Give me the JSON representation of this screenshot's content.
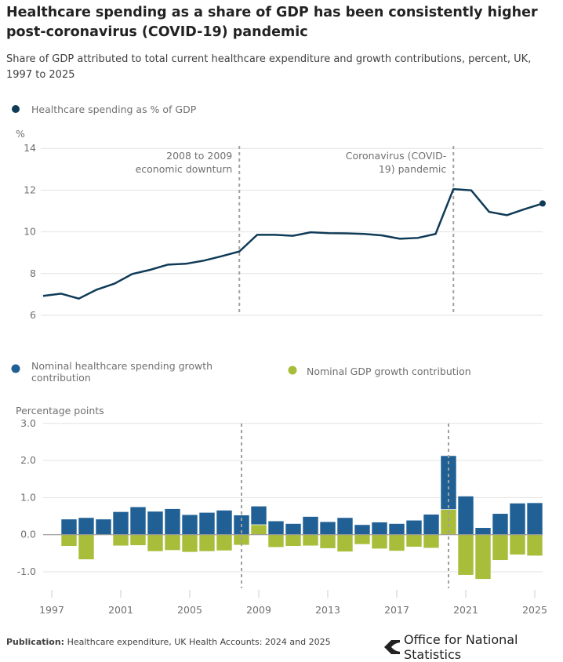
{
  "title": "Healthcare spending as a share of GDP has been consistently higher post-coronavirus (COVID-19) pandemic",
  "subtitle": "Share of GDP attributed to total current healthcare expenditure and growth contributions, percent, UK, 1997 to 2025",
  "footer": {
    "label": "Publication:",
    "text": "Healthcare expenditure, UK Health Accounts: 2024 and 2025",
    "logo_text": "Office for National Statistics"
  },
  "chart_data": [
    {
      "type": "line",
      "legend": "Healthcare spending as % of GDP",
      "ylabel": "%",
      "ylim": [
        6,
        14
      ],
      "yticks": [
        "6",
        "8",
        "10",
        "12",
        "14"
      ],
      "grid": true,
      "color": "#0f3b57",
      "annotations": [
        {
          "x": 2008,
          "lines": [
            "2008 to 2009",
            "economic downturn"
          ]
        },
        {
          "x": 2020,
          "lines": [
            "Coronavirus (COVID-",
            "19) pandemic"
          ]
        }
      ],
      "x": [
        1997,
        1998,
        1999,
        2000,
        2001,
        2002,
        2003,
        2004,
        2005,
        2006,
        2007,
        2008,
        2009,
        2010,
        2011,
        2012,
        2013,
        2014,
        2015,
        2016,
        2017,
        2018,
        2019,
        2020,
        2021,
        2022,
        2023,
        2024,
        2025
      ],
      "y": [
        6.93,
        7.04,
        6.8,
        7.23,
        7.52,
        7.98,
        8.18,
        8.43,
        8.47,
        8.62,
        8.83,
        9.06,
        9.86,
        9.86,
        9.81,
        9.98,
        9.94,
        9.93,
        9.9,
        9.83,
        9.67,
        9.71,
        9.9,
        12.05,
        11.99,
        10.96,
        10.8,
        11.09,
        11.36
      ]
    },
    {
      "type": "bar",
      "stacked": true,
      "ylabel": "Percentage points",
      "ylim": [
        -1,
        3
      ],
      "yticks": [
        "3.0",
        "2.0",
        "1.0",
        "0.0",
        "-1.0"
      ],
      "grid": true,
      "xticks": [
        "1997",
        "2001",
        "2005",
        "2009",
        "2013",
        "2017",
        "2021",
        "2025"
      ],
      "categories": [
        1998,
        1999,
        2000,
        2001,
        2002,
        2003,
        2004,
        2005,
        2006,
        2007,
        2008,
        2009,
        2010,
        2011,
        2012,
        2013,
        2014,
        2015,
        2016,
        2017,
        2018,
        2019,
        2020,
        2021,
        2022,
        2023,
        2024,
        2025
      ],
      "series": [
        {
          "name": "Nominal healthcare spending growth contribution",
          "color": "#206095",
          "values": [
            0.42,
            0.46,
            0.42,
            0.62,
            0.75,
            0.63,
            0.7,
            0.54,
            0.6,
            0.66,
            0.53,
            0.5,
            0.37,
            0.3,
            0.49,
            0.35,
            0.46,
            0.27,
            0.34,
            0.3,
            0.39,
            0.55,
            1.45,
            1.04,
            0.19,
            0.57,
            0.85,
            0.86
          ]
        },
        {
          "name": "Nominal GDP growth contribution",
          "color": "#a8bd3a",
          "values": [
            -0.31,
            -0.67,
            0,
            -0.3,
            -0.29,
            -0.45,
            -0.42,
            -0.47,
            -0.45,
            -0.43,
            -0.28,
            0.27,
            -0.34,
            -0.31,
            -0.3,
            -0.37,
            -0.46,
            -0.26,
            -0.38,
            -0.44,
            -0.33,
            -0.36,
            0.68,
            -1.09,
            -1.2,
            -0.69,
            -0.54,
            -0.57
          ]
        }
      ],
      "annotations": [
        {
          "x": 2008
        },
        {
          "x": 2020
        }
      ]
    }
  ]
}
